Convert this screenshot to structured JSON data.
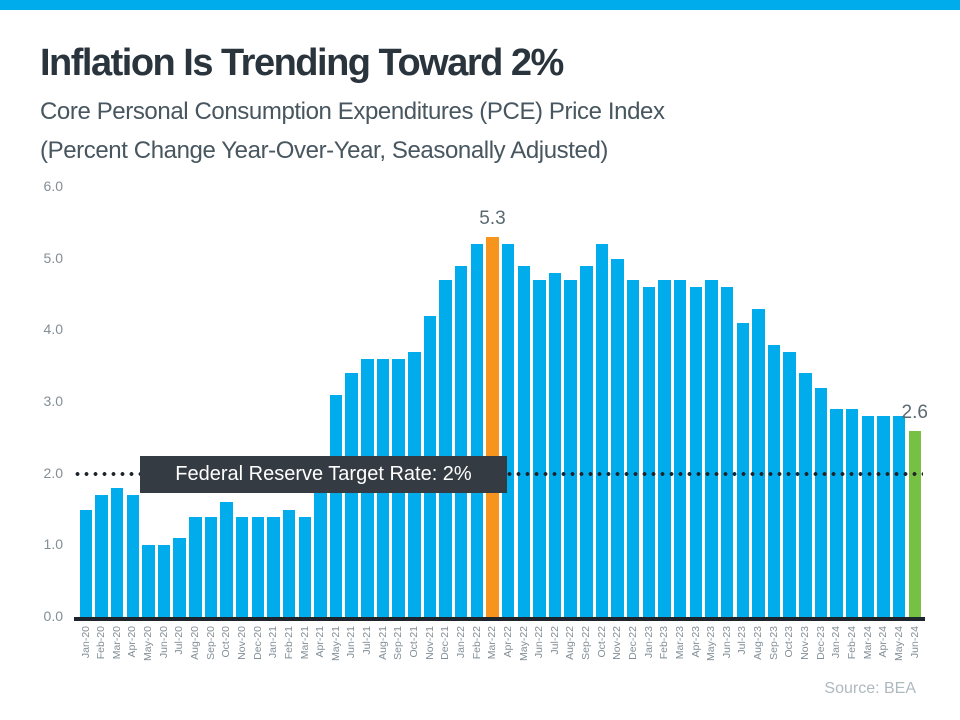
{
  "page": {
    "title": "Inflation Is Trending Toward 2%",
    "subtitle_line1": "Core Personal Consumption Expenditures (PCE) Price Index",
    "subtitle_line2": "(Percent Change Year-Over-Year, Seasonally Adjusted)",
    "source": "Source: BEA"
  },
  "colors": {
    "accent_blue": "#00acec",
    "highlight_orange": "#f7941d",
    "highlight_green": "#76c043",
    "target_box_bg": "#343b43",
    "axis_dark": "#1e242b"
  },
  "chart_data": {
    "type": "bar",
    "title": "Inflation Is Trending Toward 2%",
    "subtitle": "Core Personal Consumption Expenditures (PCE) Price Index (Percent Change Year-Over-Year, Seasonally Adjusted)",
    "xlabel": "",
    "ylabel": "",
    "ylim": [
      0,
      6
    ],
    "grid": false,
    "bar_color": "#00acec",
    "categories": [
      "Jan-20",
      "Feb-20",
      "Mar-20",
      "Apr-20",
      "May-20",
      "Jun-20",
      "Jul-20",
      "Aug-20",
      "Sep-20",
      "Oct-20",
      "Nov-20",
      "Dec-20",
      "Jan-21",
      "Feb-21",
      "Mar-21",
      "Apr-21",
      "May-21",
      "Jun-21",
      "Jul-21",
      "Aug-21",
      "Sep-21",
      "Oct-21",
      "Nov-21",
      "Dec-21",
      "Jan-22",
      "Feb-22",
      "Mar-22",
      "Apr-22",
      "May-22",
      "Jun-22",
      "Jul-22",
      "Aug-22",
      "Sep-22",
      "Oct-22",
      "Nov-22",
      "Dec-22",
      "Jan-23",
      "Feb-23",
      "Mar-23",
      "Apr-23",
      "May-23",
      "Jun-23",
      "Jul-23",
      "Aug-23",
      "Sep-23",
      "Oct-23",
      "Nov-23",
      "Dec-23",
      "Jan-24",
      "Feb-24",
      "Mar-24",
      "Apr-24",
      "May-24",
      "Jun-24"
    ],
    "values": [
      1.5,
      1.7,
      1.8,
      1.7,
      1.0,
      1.0,
      1.1,
      1.4,
      1.4,
      1.6,
      1.4,
      1.4,
      1.4,
      1.5,
      1.4,
      2.0,
      3.1,
      3.4,
      3.6,
      3.6,
      3.6,
      3.7,
      4.2,
      4.7,
      4.9,
      5.2,
      5.3,
      5.2,
      4.9,
      4.7,
      4.8,
      4.7,
      4.9,
      5.2,
      5.0,
      4.7,
      4.6,
      4.7,
      4.7,
      4.6,
      4.7,
      4.6,
      4.1,
      4.3,
      3.8,
      3.7,
      3.4,
      3.2,
      2.9,
      2.9,
      2.8,
      2.8,
      2.8,
      2.6
    ],
    "highlights": {
      "Mar-22": {
        "color": "#f7941d",
        "label": "5.3"
      },
      "Jun-24": {
        "color": "#76c043",
        "label": "2.6"
      }
    },
    "yticks": [
      {
        "v": 0,
        "label": "0.0"
      },
      {
        "v": 1,
        "label": "1.0"
      },
      {
        "v": 2,
        "label": "2.0"
      },
      {
        "v": 3,
        "label": "3.0"
      },
      {
        "v": 4,
        "label": "4.0"
      },
      {
        "v": 5,
        "label": "5.0"
      },
      {
        "v": 6,
        "label": "6.0"
      }
    ],
    "target_line": {
      "value": 2.0,
      "label": "Federal Reserve Target Rate: 2%"
    },
    "legend": null,
    "source": "Source: BEA"
  }
}
